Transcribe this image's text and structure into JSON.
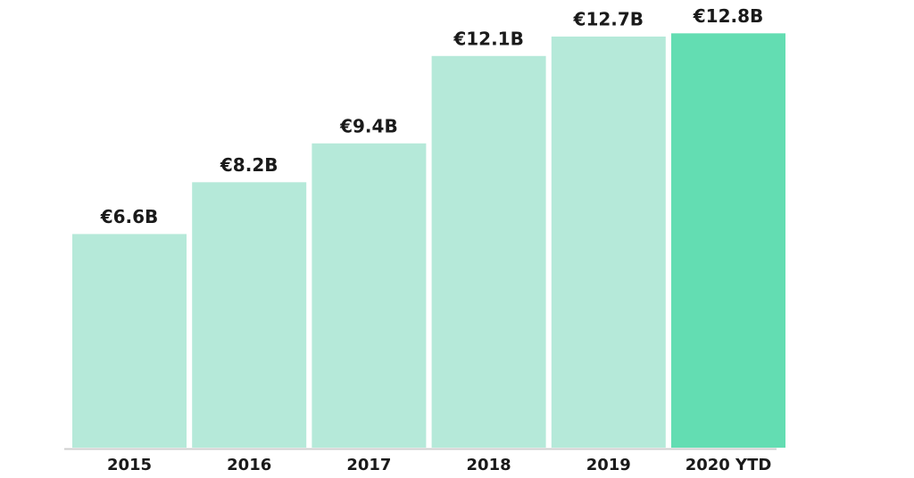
{
  "chart_data": {
    "type": "bar",
    "categories": [
      "2015",
      "2016",
      "2017",
      "2018",
      "2019",
      "2020 YTD"
    ],
    "values": [
      6.6,
      8.2,
      9.4,
      12.1,
      12.7,
      12.8
    ],
    "value_labels": [
      "€6.6B",
      "€8.2B",
      "€9.4B",
      "€12.1B",
      "€12.7B",
      "€12.8B"
    ],
    "colors": [
      "#b5e9d9",
      "#b5e9d9",
      "#b5e9d9",
      "#b5e9d9",
      "#b5e9d9",
      "#63ddb2"
    ]
  }
}
